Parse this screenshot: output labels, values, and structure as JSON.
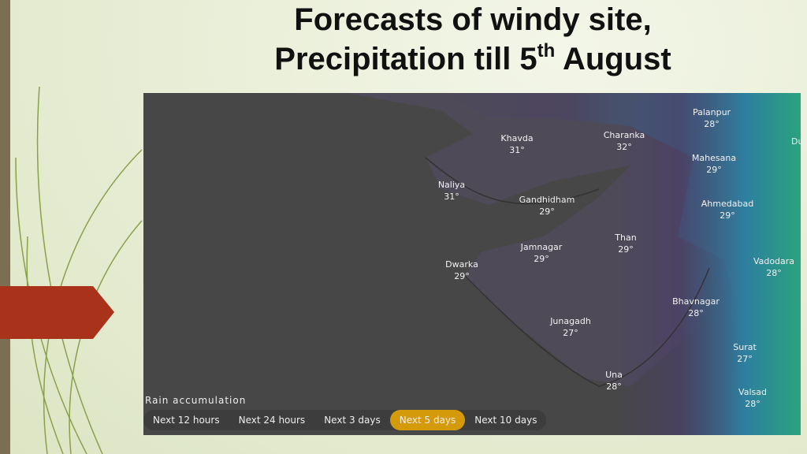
{
  "slide": {
    "title_line1": "Forecasts of windy site,",
    "title_line2": {
      "before": "Precipitation till 5",
      "sup": "th",
      "after": " August"
    }
  },
  "map": {
    "places": [
      {
        "name": "Palanpur",
        "temp": "28°"
      },
      {
        "name": "Mahesana",
        "temp": "29°"
      },
      {
        "name": "Ahmedabad",
        "temp": "29°"
      },
      {
        "name": "Vadodara",
        "temp": "28°"
      },
      {
        "name": "Bhavnagar",
        "temp": "28°"
      },
      {
        "name": "Surat",
        "temp": "27°"
      },
      {
        "name": "Valsad",
        "temp": "28°"
      },
      {
        "name": "Una",
        "temp": "28°"
      },
      {
        "name": "Junagadh",
        "temp": "27°"
      },
      {
        "name": "Than",
        "temp": "29°"
      },
      {
        "name": "Jamnagar",
        "temp": "29°"
      },
      {
        "name": "Dwarka",
        "temp": "29°"
      },
      {
        "name": "Gandhidham",
        "temp": "29°"
      },
      {
        "name": "Naliya",
        "temp": "31°"
      },
      {
        "name": "Khavda",
        "temp": "31°"
      },
      {
        "name": "Charanka",
        "temp": "32°"
      }
    ],
    "edge_label": "Du",
    "legend_title": "Rain accumulation",
    "buttons": [
      "Next 12 hours",
      "Next 24 hours",
      "Next 3 days",
      "Next 5 days",
      "Next 10 days"
    ],
    "active_button": 3
  }
}
